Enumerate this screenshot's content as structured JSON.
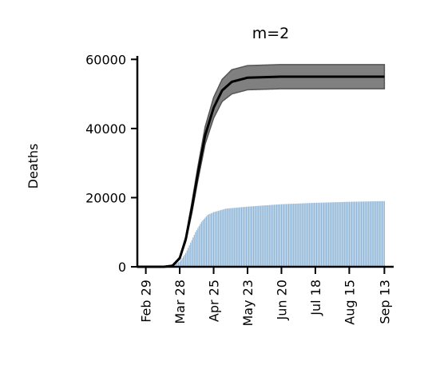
{
  "chart_data": {
    "type": "bar+line",
    "title": "m=2",
    "xlabel": "",
    "ylabel": "Deaths",
    "ylim": [
      0,
      61000
    ],
    "y_ticks": [
      0,
      20000,
      40000,
      60000
    ],
    "y_tick_labels": [
      "0",
      "20000",
      "40000",
      "60000"
    ],
    "x_range": [
      "2020-02-22",
      "2020-09-20"
    ],
    "x_ticks": [
      "2020-02-29",
      "2020-03-28",
      "2020-04-25",
      "2020-05-23",
      "2020-06-20",
      "2020-07-18",
      "2020-08-15",
      "2020-09-13"
    ],
    "x_tick_labels": [
      "Feb 29",
      "Mar 28",
      "Apr 25",
      "May 23",
      "Jun 20",
      "Jul 18",
      "Aug 15",
      "Sep 13"
    ],
    "bar_series": {
      "color": "#8fb6d8",
      "start": "2020-03-01",
      "end": "2020-09-13",
      "observed_cumulative": [
        {
          "date": "2020-03-01",
          "value": 0
        },
        {
          "date": "2020-03-20",
          "value": 200
        },
        {
          "date": "2020-03-28",
          "value": 1500
        },
        {
          "date": "2020-04-02",
          "value": 4000
        },
        {
          "date": "2020-04-06",
          "value": 7000
        },
        {
          "date": "2020-04-10",
          "value": 10000
        },
        {
          "date": "2020-04-15",
          "value": 13000
        },
        {
          "date": "2020-04-20",
          "value": 15000
        },
        {
          "date": "2020-04-25",
          "value": 15800
        },
        {
          "date": "2020-05-05",
          "value": 16800
        },
        {
          "date": "2020-05-23",
          "value": 17400
        },
        {
          "date": "2020-06-20",
          "value": 18100
        },
        {
          "date": "2020-07-18",
          "value": 18500
        },
        {
          "date": "2020-08-15",
          "value": 18800
        },
        {
          "date": "2020-09-13",
          "value": 19000
        }
      ]
    },
    "model_series": {
      "line_color": "#000000",
      "band_color": "#808080",
      "points": [
        {
          "date": "2020-02-22",
          "mean": 0,
          "lower": 0,
          "upper": 0
        },
        {
          "date": "2020-03-15",
          "mean": 0,
          "lower": 0,
          "upper": 0
        },
        {
          "date": "2020-03-22",
          "mean": 300,
          "lower": 250,
          "upper": 350
        },
        {
          "date": "2020-03-28",
          "mean": 2500,
          "lower": 2200,
          "upper": 2800
        },
        {
          "date": "2020-04-02",
          "mean": 8000,
          "lower": 7300,
          "upper": 8700
        },
        {
          "date": "2020-04-07",
          "mean": 17000,
          "lower": 15500,
          "upper": 18500
        },
        {
          "date": "2020-04-12",
          "mean": 27000,
          "lower": 25000,
          "upper": 29000
        },
        {
          "date": "2020-04-18",
          "mean": 38000,
          "lower": 35500,
          "upper": 40500
        },
        {
          "date": "2020-04-25",
          "mean": 46000,
          "lower": 43000,
          "upper": 49000
        },
        {
          "date": "2020-05-02",
          "mean": 51000,
          "lower": 47800,
          "upper": 54200
        },
        {
          "date": "2020-05-10",
          "mean": 53500,
          "lower": 50000,
          "upper": 57000
        },
        {
          "date": "2020-05-23",
          "mean": 54700,
          "lower": 51200,
          "upper": 58200
        },
        {
          "date": "2020-06-20",
          "mean": 55000,
          "lower": 51500,
          "upper": 58500
        },
        {
          "date": "2020-09-13",
          "mean": 55000,
          "lower": 51500,
          "upper": 58500
        }
      ]
    },
    "grid": false,
    "legend": "none"
  }
}
